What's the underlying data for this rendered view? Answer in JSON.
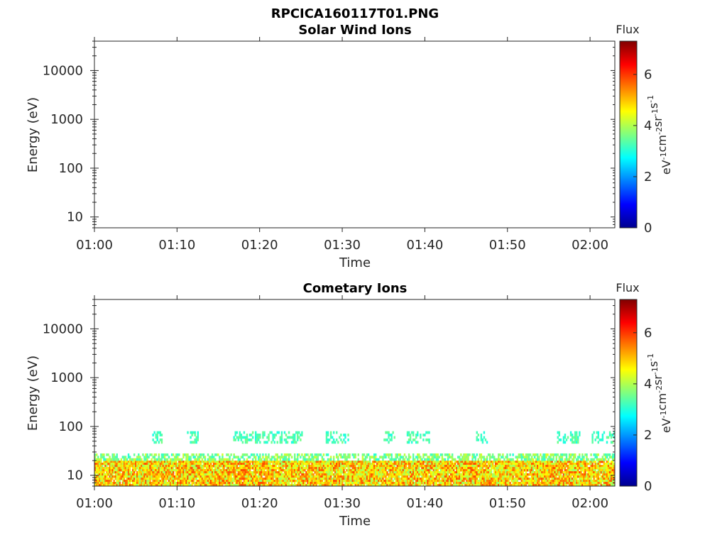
{
  "figure": {
    "title": "RPCICA160117T01.PNG"
  },
  "chart_data": [
    {
      "type": "heatmap",
      "title": "Solar Wind Ions",
      "xlabel": "Time",
      "ylabel": "Energy (eV)",
      "x_ticks": [
        "01:00",
        "01:10",
        "01:20",
        "01:30",
        "01:40",
        "01:50",
        "02:00"
      ],
      "xlim": [
        "01:00",
        "02:03"
      ],
      "y_scale": "log",
      "y_ticks": [
        10,
        100,
        1000,
        10000
      ],
      "ylim": [
        6,
        40000
      ],
      "colorbar": {
        "label": "Flux",
        "units": "eV-1cm-2sr-1s-1",
        "ticks": [
          0,
          2,
          4,
          6
        ],
        "range": [
          0,
          7.3
        ],
        "colormap": "jet"
      },
      "bands": []
    },
    {
      "type": "heatmap",
      "title": "Cometary Ions",
      "xlabel": "Time",
      "ylabel": "Energy (eV)",
      "x_ticks": [
        "01:00",
        "01:10",
        "01:20",
        "01:30",
        "01:40",
        "01:50",
        "02:00"
      ],
      "xlim": [
        "01:00",
        "02:03"
      ],
      "y_scale": "log",
      "y_ticks": [
        10,
        100,
        1000,
        10000
      ],
      "ylim": [
        6,
        40000
      ],
      "colorbar": {
        "label": "Flux",
        "units": "eV-1cm-2sr-1s-1",
        "ticks": [
          0,
          2,
          4,
          6
        ],
        "range": [
          0,
          7.3
        ],
        "colormap": "jet"
      },
      "bands": [
        {
          "e_min_ev": 6,
          "e_max_ev": 20,
          "flux_min": 3.8,
          "flux_max": 5.9,
          "coverage": "01:00-02:03"
        },
        {
          "e_min_ev": 20,
          "e_max_ev": 28,
          "flux_min": 3.0,
          "flux_max": 4.3,
          "coverage": "01:00-02:03 (patchy)"
        },
        {
          "e_min_ev": 45,
          "e_max_ev": 80,
          "flux_min": 2.9,
          "flux_max": 3.6,
          "coverage": "intermittent"
        }
      ]
    }
  ]
}
